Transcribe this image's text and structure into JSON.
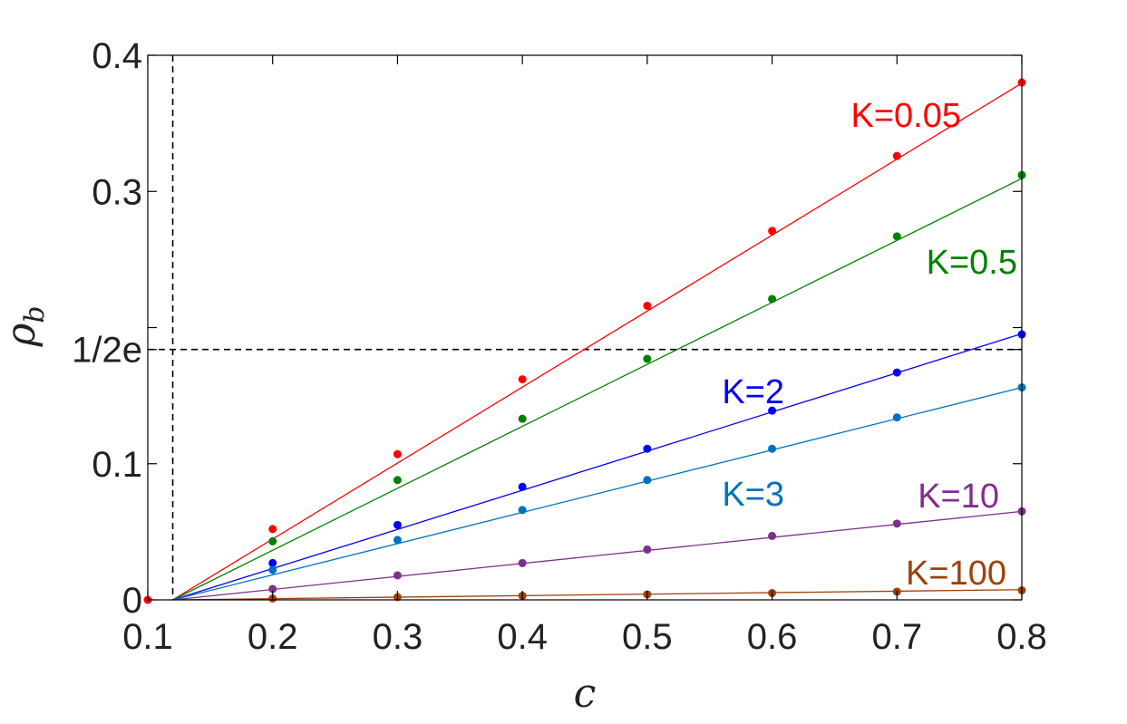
{
  "chart_data": {
    "type": "scatter",
    "title": "",
    "xlabel": "c",
    "ylabel": "ρ_b",
    "xlim": [
      0.1,
      0.8
    ],
    "ylim": [
      0,
      0.4
    ],
    "xticks": [
      {
        "value": 0.1,
        "label": "0.1"
      },
      {
        "value": 0.2,
        "label": "0.2"
      },
      {
        "value": 0.3,
        "label": "0.3"
      },
      {
        "value": 0.4,
        "label": "0.4"
      },
      {
        "value": 0.5,
        "label": "0.5"
      },
      {
        "value": 0.6,
        "label": "0.6"
      },
      {
        "value": 0.7,
        "label": "0.7"
      },
      {
        "value": 0.8,
        "label": "0.8"
      }
    ],
    "yticks": [
      {
        "value": 0,
        "label": "0"
      },
      {
        "value": 0.1,
        "label": "0.1"
      },
      {
        "value": 0.1839,
        "label": "1/2e"
      },
      {
        "value": 0.3,
        "label": "0.3"
      },
      {
        "value": 0.4,
        "label": "0.4"
      }
    ],
    "minor_yticks": [
      0.2
    ],
    "grid": false,
    "reference_lines": [
      {
        "orientation": "vertical",
        "x": 0.12,
        "style": "dashed",
        "color": "#000000"
      },
      {
        "orientation": "horizontal",
        "y": 0.1839,
        "style": "dashed",
        "color": "#000000"
      }
    ],
    "extra_points": [
      {
        "x": 0.1,
        "y": 0,
        "color": "#ff0000"
      }
    ],
    "series": [
      {
        "name": "K=0.05",
        "color": "#ff0000",
        "x": [
          0.2,
          0.3,
          0.4,
          0.5,
          0.6,
          0.7,
          0.8
        ],
        "y": [
          0.052,
          0.107,
          0.162,
          0.216,
          0.271,
          0.326,
          0.38
        ],
        "fit": {
          "x": [
            0.12,
            0.8
          ],
          "y": [
            0,
            0.3795
          ]
        }
      },
      {
        "name": "K=0.5",
        "color": "#008000",
        "x": [
          0.2,
          0.3,
          0.4,
          0.5,
          0.6,
          0.7,
          0.8
        ],
        "y": [
          0.043,
          0.088,
          0.133,
          0.177,
          0.221,
          0.267,
          0.312
        ],
        "fit": {
          "x": [
            0.12,
            0.8
          ],
          "y": [
            0,
            0.3095
          ]
        }
      },
      {
        "name": "K=2",
        "color": "#0000ff",
        "x": [
          0.2,
          0.3,
          0.4,
          0.5,
          0.6,
          0.7,
          0.8
        ],
        "y": [
          0.027,
          0.055,
          0.083,
          0.111,
          0.139,
          0.167,
          0.195
        ],
        "fit": {
          "x": [
            0.12,
            0.8
          ],
          "y": [
            0,
            0.1955
          ]
        }
      },
      {
        "name": "K=3",
        "color": "#0072bd",
        "x": [
          0.2,
          0.3,
          0.4,
          0.5,
          0.6,
          0.7,
          0.8
        ],
        "y": [
          0.022,
          0.044,
          0.066,
          0.088,
          0.111,
          0.134,
          0.156
        ],
        "fit": {
          "x": [
            0.12,
            0.8
          ],
          "y": [
            0,
            0.156
          ]
        }
      },
      {
        "name": "K=10",
        "color": "#7e2f8e",
        "x": [
          0.2,
          0.3,
          0.4,
          0.5,
          0.6,
          0.7,
          0.8
        ],
        "y": [
          0.008,
          0.018,
          0.027,
          0.037,
          0.047,
          0.056,
          0.065
        ],
        "fit": {
          "x": [
            0.12,
            0.8
          ],
          "y": [
            0,
            0.065
          ]
        }
      },
      {
        "name": "K=100",
        "color": "#a0400a",
        "x": [
          0.2,
          0.3,
          0.4,
          0.5,
          0.6,
          0.7,
          0.8
        ],
        "y": [
          0.001,
          0.002,
          0.003,
          0.004,
          0.005,
          0.006,
          0.007
        ],
        "fit": {
          "x": [
            0.12,
            0.8
          ],
          "y": [
            0,
            0.0075
          ]
        }
      }
    ]
  }
}
